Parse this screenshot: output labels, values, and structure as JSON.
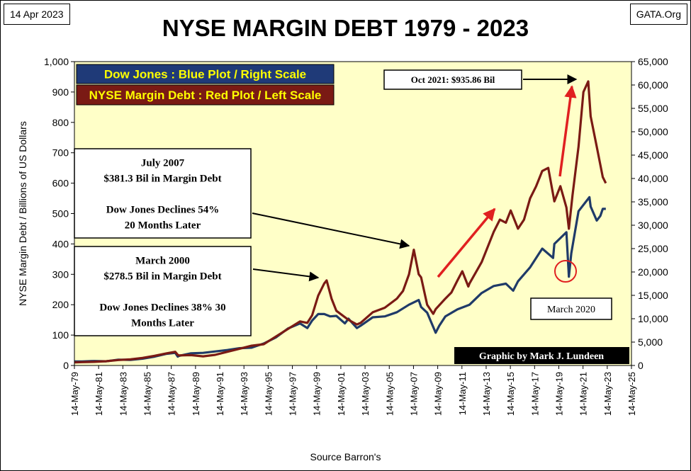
{
  "header": {
    "date": "14 Apr 2023",
    "source_site": "GATA.Org",
    "title": "NYSE MARGIN DEBT 1979 - 2023"
  },
  "footer": {
    "source": "Source Barron's"
  },
  "chart_data": {
    "type": "line",
    "title": "NYSE MARGIN DEBT 1979 - 2023",
    "ylabel": "NYSE Margin Debt / Billions of US Dollars",
    "ylabel_right": "",
    "xlabel": "",
    "ylim": [
      0,
      1000
    ],
    "ylim_right": [
      0,
      65000
    ],
    "y_ticks": [
      "0",
      "100",
      "200",
      "300",
      "400",
      "500",
      "600",
      "700",
      "800",
      "900",
      "1,000"
    ],
    "y_right_ticks": [
      "0",
      "5,000",
      "10,000",
      "15,000",
      "20,000",
      "25,000",
      "30,000",
      "35,000",
      "40,000",
      "45,000",
      "50,000",
      "55,000",
      "60,000",
      "65,000"
    ],
    "x_ticks": [
      "14-May-79",
      "14-May-81",
      "14-May-83",
      "14-May-85",
      "14-May-87",
      "14-May-89",
      "14-May-91",
      "14-May-93",
      "14-May-95",
      "14-May-97",
      "14-May-99",
      "14-May-01",
      "14-May-03",
      "14-May-05",
      "14-May-07",
      "14-May-09",
      "14-May-11",
      "14-May-13",
      "14-May-15",
      "14-May-17",
      "14-May-19",
      "14-May-21",
      "14-May-23",
      "14-May-25"
    ],
    "xlim": [
      1979.37,
      2025.37
    ],
    "grid": false,
    "legend_position": "top-left",
    "background": "#ffffc8",
    "legend": [
      {
        "label": "Dow Jones : Blue Plot / Right Scale",
        "bg": "#1f3a78",
        "fg": "#ffff00"
      },
      {
        "label": "NYSE Margin Debt : Red Plot / Left Scale",
        "bg": "#7a1a14",
        "fg": "#ffff00"
      }
    ],
    "series": [
      {
        "name": "NYSE Margin Debt",
        "axis": "left",
        "color": "#7a1a14",
        "x": [
          1979.4,
          1980,
          1981,
          1982,
          1983,
          1984,
          1985,
          1986,
          1987,
          1987.7,
          1987.9,
          1988,
          1989,
          1990,
          1991,
          1992,
          1993,
          1994,
          1995,
          1996,
          1997,
          1998,
          1998.6,
          1999,
          1999.5,
          2000,
          2000.2,
          2000.6,
          2001,
          2001.5,
          2002,
          2002.7,
          2003,
          2004,
          2005,
          2006,
          2006.5,
          2007,
          2007.4,
          2007.8,
          2008,
          2008.5,
          2009,
          2009.2,
          2010,
          2010.5,
          2011,
          2011.4,
          2011.9,
          2012,
          2013,
          2014,
          2014.5,
          2015,
          2015.4,
          2016,
          2016.5,
          2017,
          2017.5,
          2018,
          2018.5,
          2019,
          2019.5,
          2020,
          2020.2,
          2020.5,
          2021,
          2021.4,
          2021.8,
          2022,
          2022.5,
          2023,
          2023.25
        ],
        "y": [
          10,
          11,
          12,
          14,
          18,
          20,
          25,
          32,
          40,
          45,
          35,
          33,
          34,
          30,
          35,
          45,
          55,
          65,
          70,
          95,
          120,
          145,
          140,
          165,
          230,
          270,
          280,
          220,
          180,
          165,
          150,
          135,
          140,
          175,
          190,
          220,
          245,
          300,
          381,
          300,
          290,
          200,
          170,
          185,
          220,
          240,
          280,
          310,
          260,
          270,
          340,
          440,
          480,
          470,
          510,
          450,
          480,
          550,
          590,
          640,
          650,
          540,
          590,
          520,
          450,
          560,
          720,
          900,
          935,
          820,
          720,
          620,
          600
        ]
      },
      {
        "name": "Dow Jones",
        "axis": "right",
        "color": "#1f3a68",
        "x": [
          1979.4,
          1980,
          1981,
          1982,
          1983,
          1984,
          1985,
          1986,
          1987,
          1987.7,
          1987.9,
          1988,
          1989,
          1990,
          1991,
          1992,
          1993,
          1994,
          1995,
          1996,
          1997,
          1998,
          1998.6,
          1999,
          1999.5,
          2000,
          2000.5,
          2001,
          2001.7,
          2002,
          2002.7,
          2003,
          2004,
          2005,
          2006,
          2007,
          2007.8,
          2008,
          2008.5,
          2009.2,
          2009.5,
          2010,
          2011,
          2012,
          2013,
          2014,
          2015,
          2015.6,
          2016,
          2017,
          2018,
          2018.9,
          2019,
          2020,
          2020.2,
          2020.4,
          2021,
          2021.9,
          2022,
          2022.5,
          2022.8,
          2023,
          2023.25
        ],
        "y": [
          850,
          870,
          960,
          900,
          1250,
          1200,
          1450,
          1900,
          2500,
          2700,
          1900,
          2050,
          2600,
          2700,
          3000,
          3300,
          3700,
          3800,
          4700,
          6000,
          7900,
          9000,
          8000,
          9600,
          11000,
          11000,
          10500,
          10600,
          9000,
          10000,
          8000,
          8500,
          10300,
          10500,
          11400,
          13000,
          14000,
          12500,
          11300,
          7000,
          8500,
          10500,
          12000,
          13000,
          15500,
          17000,
          17500,
          16000,
          18000,
          21000,
          25000,
          23000,
          26000,
          28500,
          19000,
          24000,
          33000,
          36000,
          34000,
          31000,
          32000,
          33500,
          33500
        ]
      }
    ],
    "annotations": [
      {
        "id": "oct2021",
        "lines": [
          "Oct 2021:  $935.86  Bil"
        ]
      },
      {
        "id": "july2007",
        "lines": [
          "July 2007",
          "$381.3  Bil in Margin Debt",
          "",
          "Dow Jones Declines 54%",
          "20 Months Later"
        ]
      },
      {
        "id": "march2000",
        "lines": [
          "March  2000",
          "$278.5  Bil in Margin Debt",
          "",
          "Dow Jones Declines 38% 30",
          "Months Later"
        ]
      },
      {
        "id": "march2020",
        "lines": [
          "March  2020"
        ]
      }
    ],
    "credit": "Graphic by Mark J. Lundeen"
  }
}
